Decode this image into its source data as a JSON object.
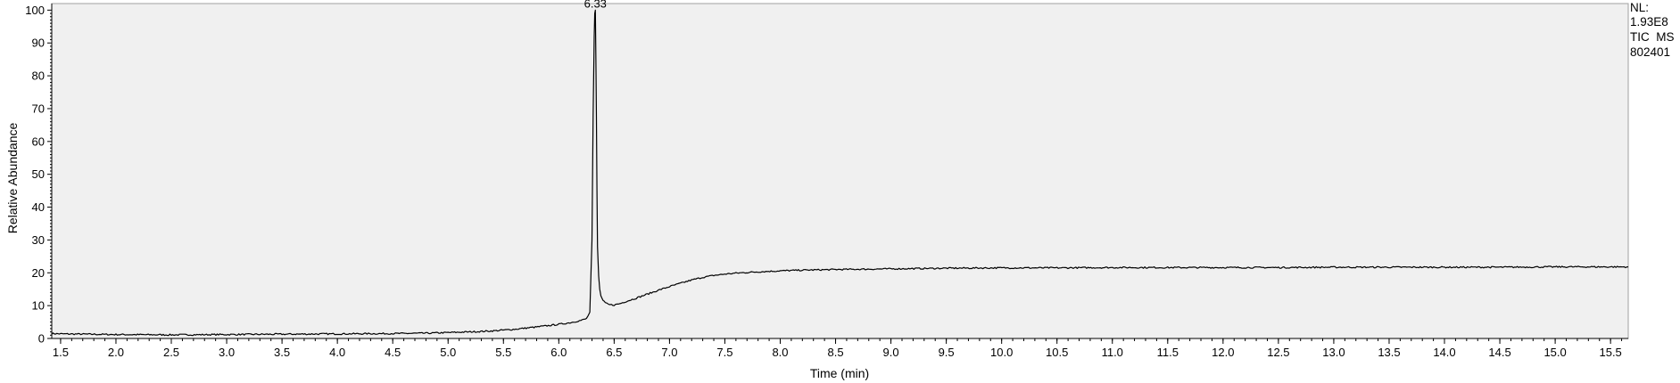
{
  "chart_data": {
    "type": "line",
    "xlabel": "Time (min)",
    "ylabel": "Relative Abundance",
    "xlim": [
      1.42,
      15.66
    ],
    "ylim": [
      0,
      102
    ],
    "x_ticks": [
      "1.5",
      "2.0",
      "2.5",
      "3.0",
      "3.5",
      "4.0",
      "4.5",
      "5.0",
      "5.5",
      "6.0",
      "6.5",
      "7.0",
      "7.5",
      "8.0",
      "8.5",
      "9.0",
      "9.5",
      "10.0",
      "10.5",
      "11.0",
      "11.5",
      "12.0",
      "12.5",
      "13.0",
      "13.5",
      "14.0",
      "14.5",
      "15.0",
      "15.5"
    ],
    "y_ticks": [
      "0",
      "10",
      "20",
      "30",
      "40",
      "50",
      "60",
      "70",
      "80",
      "90",
      "100"
    ],
    "peak_label": {
      "text": "6.33",
      "x": 6.33,
      "y": 100
    },
    "info_text": [
      "NL:",
      "1.93E8",
      "TIC  MS",
      "802401"
    ],
    "grid": false,
    "background": "#f0f0f0",
    "line_color": "#000000",
    "series": [
      {
        "x": [
          1.42,
          1.5,
          2.0,
          2.5,
          3.0,
          3.5,
          4.0,
          4.5,
          4.8,
          5.0,
          5.2,
          5.4,
          5.6,
          5.8,
          6.0,
          6.1,
          6.2,
          6.25,
          6.28,
          6.3,
          6.31,
          6.32,
          6.325,
          6.33,
          6.335,
          6.34,
          6.345,
          6.35,
          6.36,
          6.37,
          6.38,
          6.4,
          6.42,
          6.45,
          6.5,
          6.55,
          6.6,
          6.7,
          6.8,
          6.9,
          7.0,
          7.1,
          7.2,
          7.3,
          7.4,
          7.5,
          7.6,
          7.8,
          8.0,
          8.2,
          8.5,
          9.0,
          9.5,
          10.0,
          10.5,
          11.0,
          11.5,
          12.0,
          12.5,
          13.0,
          13.5,
          14.0,
          14.5,
          15.0,
          15.5,
          15.66
        ],
        "y": [
          1.5,
          1.4,
          1.2,
          1.1,
          1.2,
          1.3,
          1.4,
          1.5,
          1.6,
          1.8,
          2.0,
          2.3,
          2.8,
          3.5,
          4.3,
          4.8,
          5.5,
          6.0,
          8.0,
          30.0,
          68.0,
          92.0,
          99.0,
          100.0,
          85.0,
          67.0,
          45.0,
          28.0,
          19.0,
          15.0,
          13.0,
          11.5,
          10.8,
          10.3,
          10.2,
          10.6,
          11.2,
          12.3,
          13.5,
          14.7,
          15.8,
          16.8,
          17.8,
          18.6,
          19.2,
          19.6,
          19.9,
          20.3,
          20.6,
          20.8,
          21.0,
          21.2,
          21.4,
          21.5,
          21.5,
          21.6,
          21.6,
          21.6,
          21.6,
          21.7,
          21.7,
          21.7,
          21.7,
          21.8,
          21.8,
          21.8
        ]
      }
    ]
  }
}
